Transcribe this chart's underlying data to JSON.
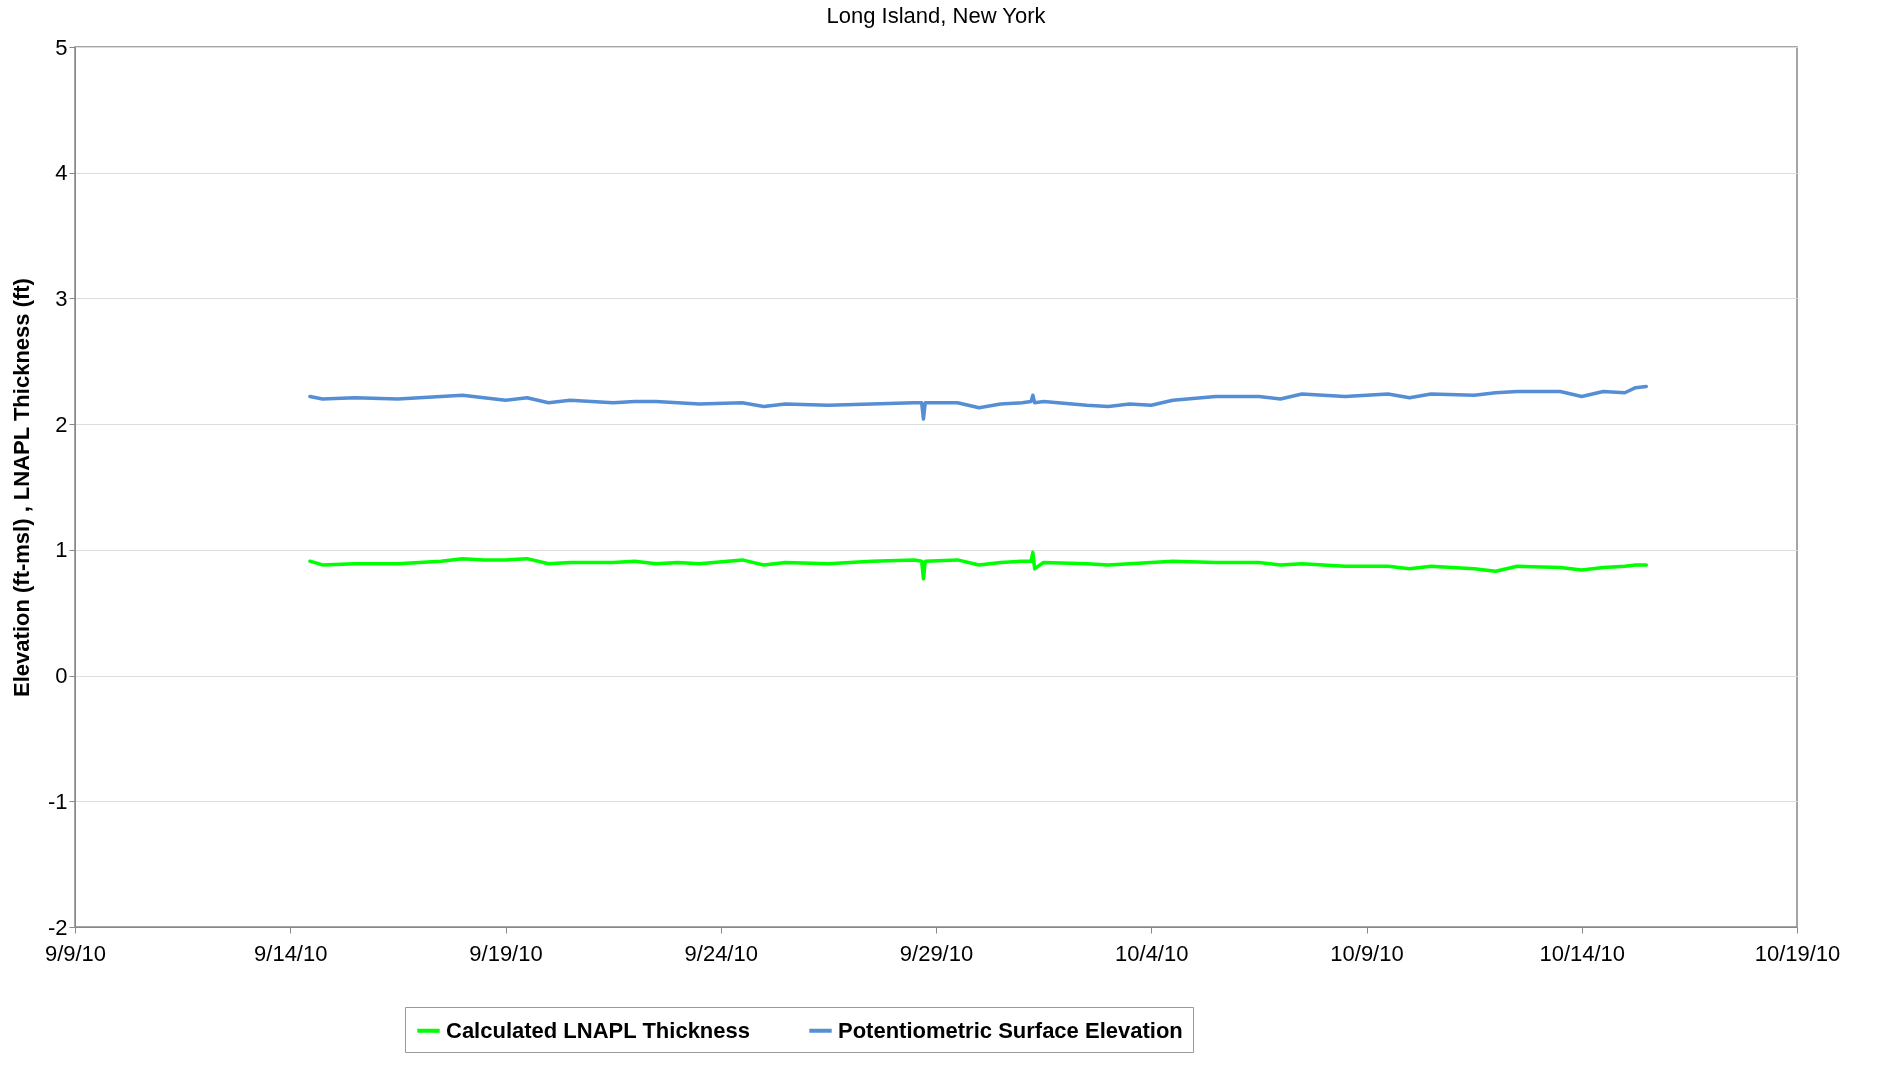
{
  "chart_data": {
    "type": "line",
    "title": "Long Island, New York",
    "ylabel": "Elevation (ft-msl) , LNAPL Thickness (ft)",
    "x": [
      "--09-14T11:00",
      "--09-14T18:00",
      "--09-15T12:00",
      "--09-16T12:00",
      "--09-17T00:00",
      "--09-17T12:00",
      "--09-18T00:00",
      "--09-18T12:00",
      "--09-19T00:00",
      "--09-19T12:00",
      "--09-20T00:00",
      "--09-20T12:00",
      "--09-21T12:00",
      "--09-22T00:00",
      "--09-22T12:00",
      "--09-23T00:00",
      "--09-23T12:00",
      "--09-24T12:00",
      "--09-25T00:00",
      "--09-25T12:00",
      "--09-26T12:00",
      "--09-27T12:00",
      "--09-28T12:00",
      "--09-28T16:00",
      "--09-28T17:00",
      "--09-28T18:00",
      "--09-29T12:00",
      "--09-30T00:00",
      "--09-30T12:00",
      "--10-01T00:00",
      "--10-01T05:00",
      "--10-01T06:00",
      "--10-01T07:00",
      "--10-01T12:00",
      "--10-02T12:00",
      "--10-03T00:00",
      "--10-03T12:00",
      "--10-04T00:00",
      "--10-04T12:00",
      "--10-05T12:00",
      "--10-06T12:00",
      "--10-07T00:00",
      "--10-07T12:00",
      "--10-08T12:00",
      "--10-09T12:00",
      "--10-10T00:00",
      "--10-10T12:00",
      "--10-11T12:00",
      "--10-12T00:00",
      "--10-12T12:00",
      "--10-13T12:00",
      "--10-14T00:00",
      "--10-14T12:00",
      "--10-15T00:00",
      "--10-15T06:00",
      "--10-15T12:00"
    ],
    "series": [
      {
        "name": "Calculated LNAPL Thickness",
        "color": "#00ff00",
        "values": [
          0.91,
          0.88,
          0.89,
          0.89,
          0.9,
          0.91,
          0.93,
          0.92,
          0.92,
          0.93,
          0.89,
          0.9,
          0.9,
          0.91,
          0.89,
          0.9,
          0.89,
          0.92,
          0.88,
          0.9,
          0.89,
          0.91,
          0.92,
          0.91,
          0.77,
          0.91,
          0.92,
          0.88,
          0.9,
          0.91,
          0.91,
          0.98,
          0.85,
          0.9,
          0.89,
          0.88,
          0.89,
          0.9,
          0.91,
          0.9,
          0.9,
          0.88,
          0.89,
          0.87,
          0.87,
          0.85,
          0.87,
          0.85,
          0.83,
          0.87,
          0.86,
          0.84,
          0.86,
          0.87,
          0.88,
          0.88
        ]
      },
      {
        "name": "Potentiometric Surface Elevation",
        "color": "#558ed5",
        "values": [
          2.22,
          2.2,
          2.21,
          2.2,
          2.21,
          2.22,
          2.23,
          2.21,
          2.19,
          2.21,
          2.17,
          2.19,
          2.17,
          2.18,
          2.18,
          2.17,
          2.16,
          2.17,
          2.14,
          2.16,
          2.15,
          2.16,
          2.17,
          2.17,
          2.04,
          2.17,
          2.17,
          2.13,
          2.16,
          2.17,
          2.18,
          2.23,
          2.17,
          2.18,
          2.15,
          2.14,
          2.16,
          2.15,
          2.19,
          2.22,
          2.22,
          2.2,
          2.24,
          2.22,
          2.24,
          2.21,
          2.24,
          2.23,
          2.25,
          2.26,
          2.26,
          2.22,
          2.26,
          2.25,
          2.29,
          2.3
        ]
      }
    ],
    "xlim": [
      "--09-09",
      "--10-19"
    ],
    "xticks": [
      {
        "value": "--09-09",
        "label": "9/9/10"
      },
      {
        "value": "--09-14",
        "label": "9/14/10"
      },
      {
        "value": "--09-19",
        "label": "9/19/10"
      },
      {
        "value": "--09-24",
        "label": "9/24/10"
      },
      {
        "value": "--09-29",
        "label": "9/29/10"
      },
      {
        "value": "--10-04",
        "label": "10/4/10"
      },
      {
        "value": "--10-09",
        "label": "10/9/10"
      },
      {
        "value": "--10-14",
        "label": "10/14/10"
      },
      {
        "value": "--10-19",
        "label": "10/19/10"
      }
    ],
    "ylim": [
      -2,
      5
    ],
    "yticks": [
      -2,
      -1,
      0,
      1,
      2,
      3,
      4,
      5
    ],
    "grid": "y",
    "legend": "bottom",
    "line_style": "solid"
  }
}
